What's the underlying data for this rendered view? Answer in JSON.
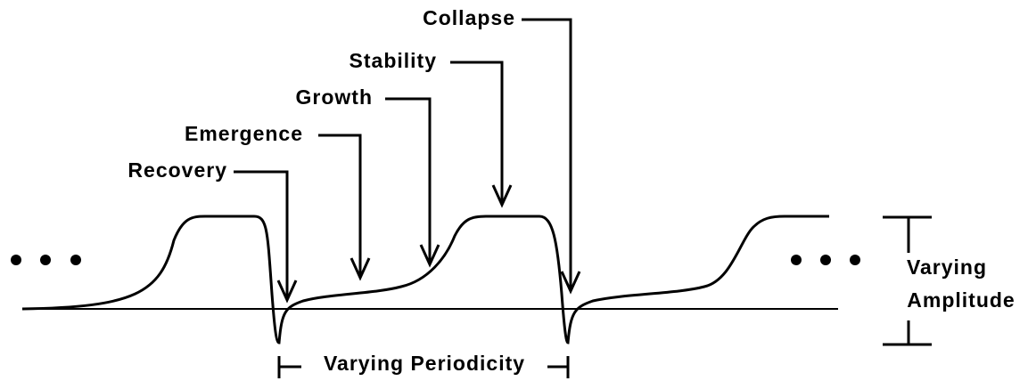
{
  "stages": [
    "Recovery",
    "Emergence",
    "Growth",
    "Stability",
    "Collapse"
  ],
  "periodicity_label": "Varying Periodicity",
  "amplitude_label": [
    "Varying",
    "Amplitude"
  ]
}
